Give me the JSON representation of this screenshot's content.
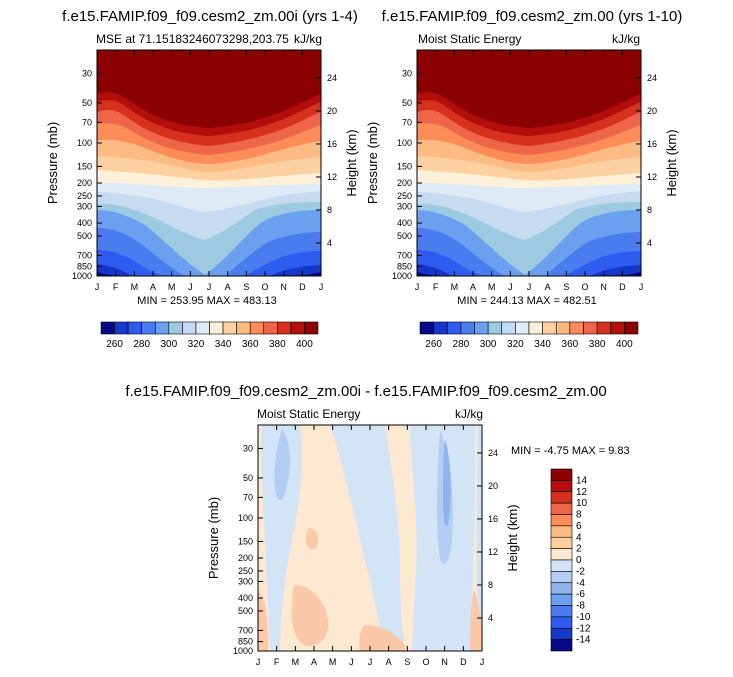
{
  "chart_data": [
    {
      "type": "heatmap",
      "title": "f.e15.FAMIP.f09_f09.cesm2_zm.00i (yrs 1-4)",
      "subtitle_left": "MSE at 71.15183246073298,203.75",
      "subtitle_right": "kJ/kg",
      "xlabel": "",
      "ylabel": "Pressure (mb)",
      "ylabel_right": "Height (km)",
      "x_ticks": [
        "J",
        "F",
        "M",
        "A",
        "M",
        "J",
        "J",
        "A",
        "S",
        "O",
        "N",
        "D",
        "J"
      ],
      "y_ticks": [
        30,
        50,
        70,
        100,
        150,
        200,
        250,
        300,
        400,
        500,
        700,
        850,
        1000
      ],
      "y_range": [
        20,
        1000
      ],
      "height_ticks": [
        4,
        8,
        12,
        16,
        20,
        24
      ],
      "min_max_text": "MIN = 253.95 MAX = 483.13",
      "colorbar_labels": [
        "260",
        "280",
        "300",
        "320",
        "340",
        "360",
        "380",
        "400"
      ],
      "colorbar_orientation": "horizontal",
      "levels": [
        260,
        270,
        280,
        290,
        300,
        310,
        320,
        330,
        340,
        350,
        360,
        370,
        380,
        390,
        400
      ]
    },
    {
      "type": "heatmap",
      "title": "f.e15.FAMIP.f09_f09.cesm2_zm.00 (yrs 1-10)",
      "subtitle_left": "Moist Static Energy",
      "subtitle_right": "kJ/kg",
      "xlabel": "",
      "ylabel": "Pressure (mb)",
      "ylabel_right": "Height (km)",
      "x_ticks": [
        "J",
        "F",
        "M",
        "A",
        "M",
        "J",
        "J",
        "A",
        "S",
        "O",
        "N",
        "D",
        "J"
      ],
      "y_ticks": [
        30,
        50,
        70,
        100,
        150,
        200,
        250,
        300,
        400,
        500,
        700,
        850,
        1000
      ],
      "y_range": [
        20,
        1000
      ],
      "height_ticks": [
        4,
        8,
        12,
        16,
        20,
        24
      ],
      "min_max_text": "MIN = 244.13 MAX = 482.51",
      "colorbar_labels": [
        "260",
        "280",
        "300",
        "320",
        "340",
        "360",
        "380",
        "400"
      ],
      "colorbar_orientation": "horizontal",
      "levels": [
        260,
        270,
        280,
        290,
        300,
        310,
        320,
        330,
        340,
        350,
        360,
        370,
        380,
        390,
        400
      ]
    },
    {
      "type": "heatmap",
      "title": "f.e15.FAMIP.f09_f09.cesm2_zm.00i - f.e15.FAMIP.f09_f09.cesm2_zm.00",
      "subtitle_left": "Moist Static Energy",
      "subtitle_right": "kJ/kg",
      "xlabel": "",
      "ylabel": "Pressure (mb)",
      "ylabel_right": "Height (km)",
      "x_ticks": [
        "J",
        "F",
        "M",
        "A",
        "M",
        "J",
        "J",
        "A",
        "S",
        "O",
        "N",
        "D",
        "J"
      ],
      "y_ticks": [
        30,
        50,
        70,
        100,
        150,
        200,
        250,
        300,
        400,
        500,
        700,
        850,
        1000
      ],
      "y_range": [
        20,
        1000
      ],
      "height_ticks": [
        4,
        8,
        12,
        16,
        20,
        24
      ],
      "min_max_text": "MIN =  -4.75 MAX =   9.83",
      "colorbar_labels": [
        "14",
        "12",
        "10",
        "8",
        "6",
        "4",
        "2",
        "0",
        "-2",
        "-4",
        "-6",
        "-8",
        "-10",
        "-12",
        "-14"
      ],
      "colorbar_orientation": "vertical",
      "levels": [
        -14,
        -12,
        -10,
        -8,
        -6,
        -4,
        -2,
        0,
        2,
        4,
        6,
        8,
        10,
        12,
        14
      ]
    }
  ],
  "colors": {
    "dark_red": "#8b0000",
    "red": "#d7301f",
    "orange": "#fc8d59",
    "peach": "#fdd0a2",
    "cream": "#fef0d9",
    "light_blue": "#c6dbef",
    "blue": "#4a7cf0",
    "dark_blue": "#08088a"
  }
}
